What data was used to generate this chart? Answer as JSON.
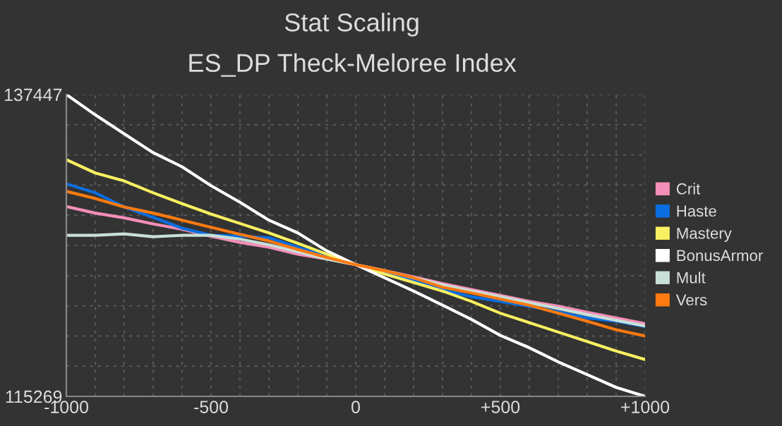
{
  "chart_data": {
    "type": "line",
    "title": "Stat Scaling",
    "subtitle": "ES_DP Theck-Meloree Index",
    "x": [
      -1000,
      -900,
      -800,
      -700,
      -600,
      -500,
      -400,
      -300,
      -200,
      -100,
      0,
      100,
      200,
      300,
      400,
      500,
      600,
      700,
      800,
      900,
      1000
    ],
    "series": [
      {
        "name": "Crit",
        "color": "#f48fb8",
        "values": [
          129220,
          128734,
          128387,
          127936,
          127554,
          127034,
          126583,
          126235,
          125715,
          125368,
          124950,
          124501,
          124049,
          123564,
          123113,
          122696,
          122245,
          121898,
          121447,
          121031,
          120614
        ]
      },
      {
        "name": "Haste",
        "color": "#0a6ee0",
        "values": [
          130885,
          130226,
          129185,
          128422,
          127624,
          127103,
          127034,
          126930,
          126235,
          125542,
          124950,
          124396,
          123807,
          123113,
          122592,
          122245,
          121898,
          121482,
          121031,
          120788,
          120406
        ]
      },
      {
        "name": "Mastery",
        "color": "#f8f060",
        "values": [
          132655,
          131683,
          131094,
          130226,
          129428,
          128665,
          127971,
          127277,
          126513,
          125715,
          124950,
          124258,
          123633,
          123008,
          122245,
          121378,
          120684,
          119990,
          119296,
          118602,
          117977
        ]
      },
      {
        "name": "BonusArmor",
        "color": "#ffffff",
        "values": [
          137447,
          135952,
          134563,
          133175,
          132135,
          130747,
          129532,
          128213,
          127277,
          125958,
          124950,
          123980,
          123008,
          121967,
          120926,
          119747,
          118844,
          117803,
          116867,
          115930,
          115269
        ]
      },
      {
        "name": "Mult",
        "color": "#c8e0d8",
        "values": [
          127103,
          127103,
          127207,
          126999,
          127103,
          127103,
          126826,
          126409,
          125888,
          125368,
          124950,
          124501,
          123980,
          123460,
          123008,
          122592,
          122141,
          121725,
          121274,
          120857,
          120441
        ]
      },
      {
        "name": "Vers",
        "color": "#ff7a10",
        "values": [
          130330,
          129810,
          129185,
          128734,
          128213,
          127693,
          127172,
          126687,
          126062,
          125472,
          124950,
          124501,
          123980,
          123286,
          122870,
          122419,
          121967,
          121378,
          120788,
          120163,
          119712
        ]
      }
    ],
    "xlim": [
      -1000,
      1000
    ],
    "xticks": [
      -1000,
      {
        "value": -900,
        "label": null
      },
      {
        "value": -800,
        "label": null
      },
      {
        "value": -700,
        "label": null
      },
      {
        "value": -600,
        "label": null
      },
      -500,
      {
        "value": -400,
        "label": null
      },
      {
        "value": -300,
        "label": null
      },
      {
        "value": -200,
        "label": null
      },
      {
        "value": -100,
        "label": null
      },
      0,
      {
        "value": 100,
        "label": null
      },
      {
        "value": 200,
        "label": null
      },
      {
        "value": 300,
        "label": null
      },
      {
        "value": 400,
        "label": null
      },
      {
        "value": 500,
        "label": "+500"
      },
      {
        "value": 600,
        "label": null
      },
      {
        "value": 700,
        "label": null
      },
      {
        "value": 800,
        "label": null
      },
      {
        "value": 900,
        "label": null
      },
      {
        "value": 1000,
        "label": "+1000"
      }
    ],
    "ylim": [
      115269,
      137447
    ],
    "yticks": [
      115269,
      {
        "value": 117487,
        "label": null
      },
      {
        "value": 119705,
        "label": null
      },
      {
        "value": 121922,
        "label": null
      },
      {
        "value": 124140,
        "label": null
      },
      {
        "value": 126358,
        "label": null
      },
      {
        "value": 128576,
        "label": null
      },
      {
        "value": 130794,
        "label": null
      },
      {
        "value": 133011,
        "label": null
      },
      {
        "value": 135229,
        "label": null
      },
      137447
    ],
    "grid": true,
    "legend": "right",
    "marker": "none",
    "line_style": "solid"
  }
}
